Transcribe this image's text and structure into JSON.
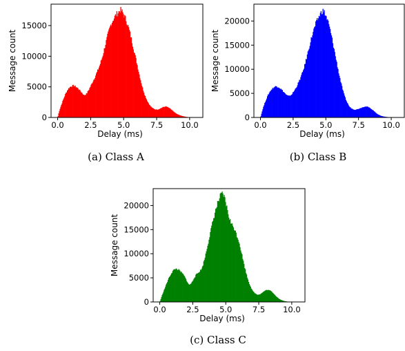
{
  "chart_data": [
    {
      "type": "bar",
      "subtype": "histogram",
      "caption": "(a)  Class A",
      "xlabel": "Delay (ms)",
      "ylabel": "Message count",
      "xlim": [
        -0.5,
        11.0
      ],
      "ylim": [
        0,
        18500
      ],
      "xticks": [
        0.0,
        2.5,
        5.0,
        7.5,
        10.0
      ],
      "xtick_labels": [
        "0.0",
        "2.5",
        "5.0",
        "7.5",
        "10.0"
      ],
      "yticks": [
        0,
        5000,
        10000,
        15000
      ],
      "ytick_labels": [
        "0",
        "5000",
        "10000",
        "15000"
      ],
      "color": "#ff0000",
      "grid": false,
      "x": [
        0.0,
        0.1,
        0.2,
        0.4,
        0.6,
        0.8,
        1.0,
        1.2,
        1.4,
        1.6,
        1.8,
        2.0,
        2.2,
        2.4,
        2.6,
        2.8,
        3.0,
        3.2,
        3.4,
        3.6,
        3.8,
        4.0,
        4.2,
        4.4,
        4.6,
        4.75,
        4.9,
        5.0,
        5.2,
        5.4,
        5.6,
        5.8,
        6.0,
        6.2,
        6.4,
        6.6,
        6.8,
        7.0,
        7.2,
        7.4,
        7.6,
        7.8,
        8.0,
        8.2,
        8.4,
        8.6,
        8.8,
        9.0,
        9.2,
        9.4,
        9.6,
        9.8,
        10.0
      ],
      "values": [
        0,
        900,
        1600,
        2800,
        3900,
        4700,
        5100,
        5200,
        5000,
        4600,
        4100,
        3600,
        3900,
        4700,
        5600,
        6500,
        7500,
        8600,
        10000,
        11800,
        13500,
        15000,
        16000,
        16700,
        17200,
        17600,
        17200,
        16800,
        15800,
        14400,
        12600,
        10700,
        8800,
        6800,
        5000,
        3600,
        2600,
        1900,
        1500,
        1300,
        1300,
        1500,
        1700,
        1800,
        1600,
        1300,
        900,
        600,
        400,
        250,
        150,
        80,
        0
      ]
    },
    {
      "type": "bar",
      "subtype": "histogram",
      "caption": "(b)  Class B",
      "xlabel": "Delay (ms)",
      "ylabel": "Message count",
      "xlim": [
        -0.5,
        11.0
      ],
      "ylim": [
        0,
        23500
      ],
      "xticks": [
        0.0,
        2.5,
        5.0,
        7.5,
        10.0
      ],
      "xtick_labels": [
        "0.0",
        "2.5",
        "5.0",
        "7.5",
        "10.0"
      ],
      "yticks": [
        0,
        5000,
        10000,
        15000,
        20000
      ],
      "ytick_labels": [
        "0",
        "5000",
        "10000",
        "15000",
        "20000"
      ],
      "color": "#0000ff",
      "grid": false,
      "x": [
        0.0,
        0.1,
        0.2,
        0.4,
        0.6,
        0.8,
        1.0,
        1.2,
        1.4,
        1.6,
        1.8,
        2.0,
        2.2,
        2.4,
        2.6,
        2.8,
        3.0,
        3.2,
        3.4,
        3.6,
        3.8,
        4.0,
        4.2,
        4.4,
        4.6,
        4.75,
        4.9,
        5.0,
        5.2,
        5.4,
        5.6,
        5.8,
        6.0,
        6.2,
        6.4,
        6.6,
        6.8,
        7.0,
        7.2,
        7.4,
        7.6,
        7.8,
        8.0,
        8.2,
        8.4,
        8.6,
        8.8,
        9.0,
        9.2,
        9.4,
        9.6,
        9.8,
        10.0
      ],
      "values": [
        0,
        1000,
        2000,
        3500,
        4800,
        5700,
        6200,
        6500,
        6300,
        5800,
        5200,
        4600,
        4400,
        4800,
        5600,
        6600,
        7800,
        9200,
        11000,
        13200,
        15500,
        17500,
        19200,
        20500,
        21600,
        22200,
        21700,
        21000,
        19500,
        17200,
        14500,
        11700,
        9000,
        6600,
        4600,
        3200,
        2200,
        1800,
        1600,
        1700,
        1900,
        2100,
        2300,
        2200,
        1900,
        1500,
        1000,
        600,
        350,
        200,
        120,
        60,
        0
      ]
    },
    {
      "type": "bar",
      "subtype": "histogram",
      "caption": "(c)  Class C",
      "xlabel": "Delay (ms)",
      "ylabel": "Message count",
      "xlim": [
        -0.5,
        11.0
      ],
      "ylim": [
        0,
        23500
      ],
      "xticks": [
        0.0,
        2.5,
        5.0,
        7.5,
        10.0
      ],
      "xtick_labels": [
        "0.0",
        "2.5",
        "5.0",
        "7.5",
        "10.0"
      ],
      "yticks": [
        0,
        5000,
        10000,
        15000,
        20000
      ],
      "ytick_labels": [
        "0",
        "5000",
        "10000",
        "15000",
        "20000"
      ],
      "color": "#008000",
      "grid": false,
      "x": [
        0.0,
        0.1,
        0.2,
        0.4,
        0.6,
        0.8,
        1.0,
        1.2,
        1.4,
        1.6,
        1.8,
        2.0,
        2.2,
        2.4,
        2.6,
        2.8,
        3.0,
        3.2,
        3.4,
        3.6,
        3.8,
        4.0,
        4.2,
        4.4,
        4.6,
        4.75,
        4.9,
        5.0,
        5.2,
        5.4,
        5.6,
        5.8,
        6.0,
        6.2,
        6.4,
        6.6,
        6.8,
        7.0,
        7.2,
        7.4,
        7.6,
        7.8,
        8.0,
        8.2,
        8.4,
        8.6,
        8.8,
        9.0,
        9.2,
        9.4,
        9.6,
        9.8,
        10.0
      ],
      "values": [
        0,
        800,
        1600,
        3000,
        4400,
        5600,
        6500,
        6900,
        6700,
        6200,
        5600,
        4600,
        3500,
        3900,
        5000,
        5800,
        6300,
        7000,
        9000,
        11500,
        14000,
        16500,
        18800,
        20600,
        22000,
        22400,
        21600,
        20500,
        18000,
        16200,
        15500,
        14000,
        12500,
        10000,
        7500,
        5300,
        3600,
        2400,
        1800,
        1500,
        1600,
        2000,
        2400,
        2500,
        2300,
        1800,
        1200,
        700,
        400,
        200,
        100,
        50,
        0
      ]
    }
  ]
}
